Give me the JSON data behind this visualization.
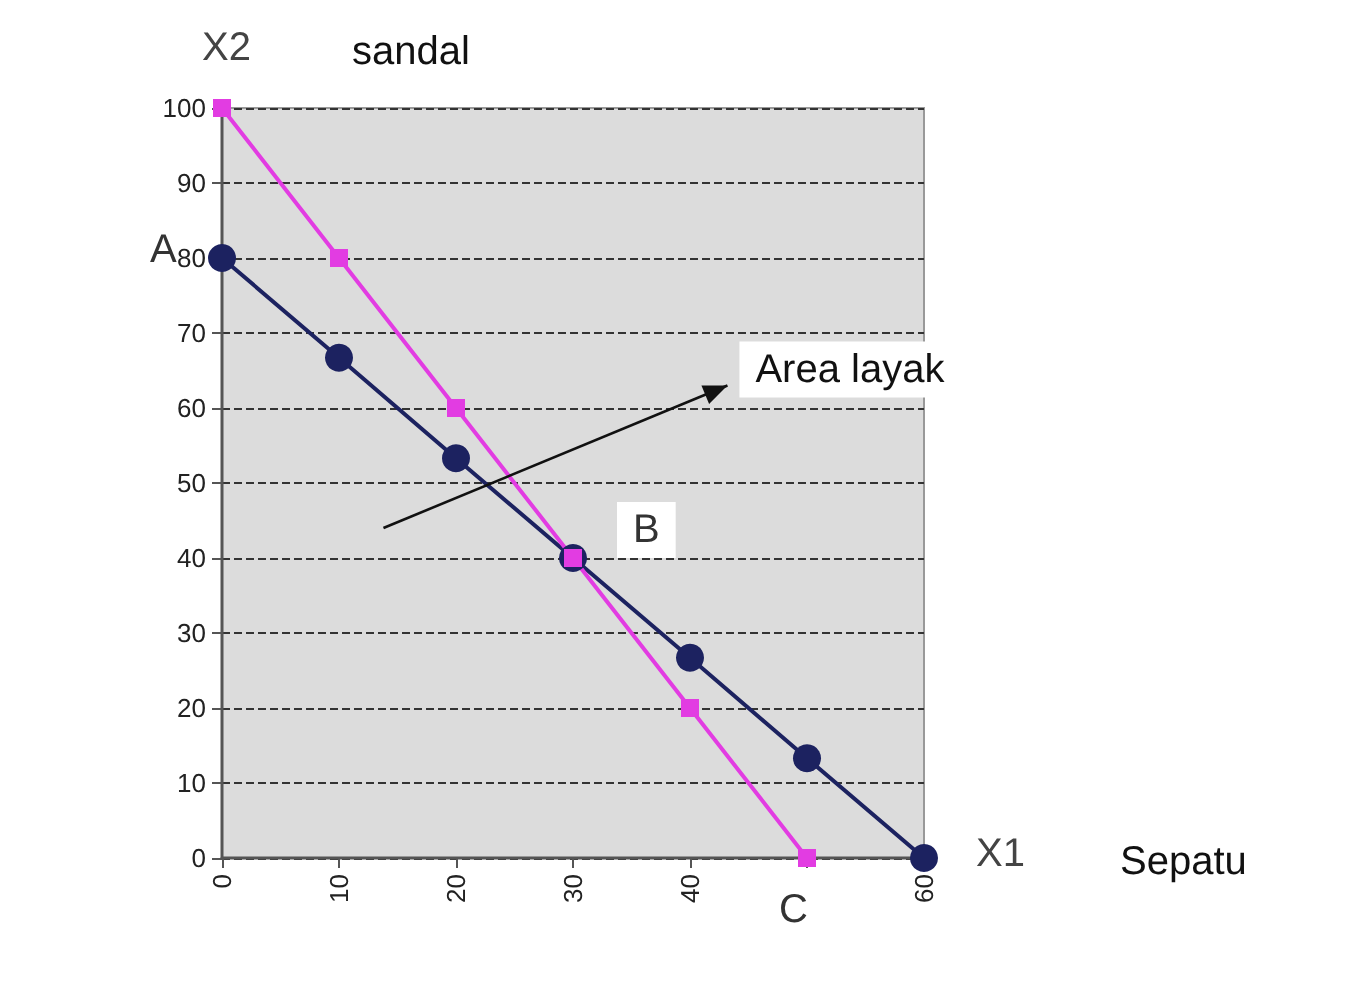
{
  "chart_data": {
    "type": "line",
    "xlabel": "X1",
    "ylabel": "X2",
    "series": [
      {
        "color": "#1c2260",
        "marker": "circle",
        "x": [
          0,
          10,
          20,
          30,
          40,
          50,
          60
        ],
        "values": [
          80,
          66.7,
          53.3,
          40,
          26.7,
          13.3,
          0
        ]
      },
      {
        "color": "#e23ce2",
        "marker": "square",
        "x": [
          0,
          10,
          20,
          30,
          40,
          50
        ],
        "values": [
          100,
          80,
          60,
          40,
          20,
          0
        ]
      }
    ],
    "xlim": [
      0,
      60
    ],
    "xticks": [
      0,
      10,
      20,
      30,
      40,
      {
        "value": 50,
        "label": null
      },
      60
    ],
    "ylim": [
      0,
      100
    ],
    "yticks": [
      0,
      10,
      20,
      30,
      40,
      50,
      60,
      70,
      80,
      90,
      100
    ],
    "grid": "y",
    "annotations": [
      "sandal",
      "Sepatu",
      "Area layak",
      {
        "text": "A",
        "x": 0,
        "y": 80
      },
      {
        "text": "B",
        "x": 30,
        "y": 40
      },
      {
        "text": "C",
        "x": 50,
        "y": 0
      }
    ]
  }
}
